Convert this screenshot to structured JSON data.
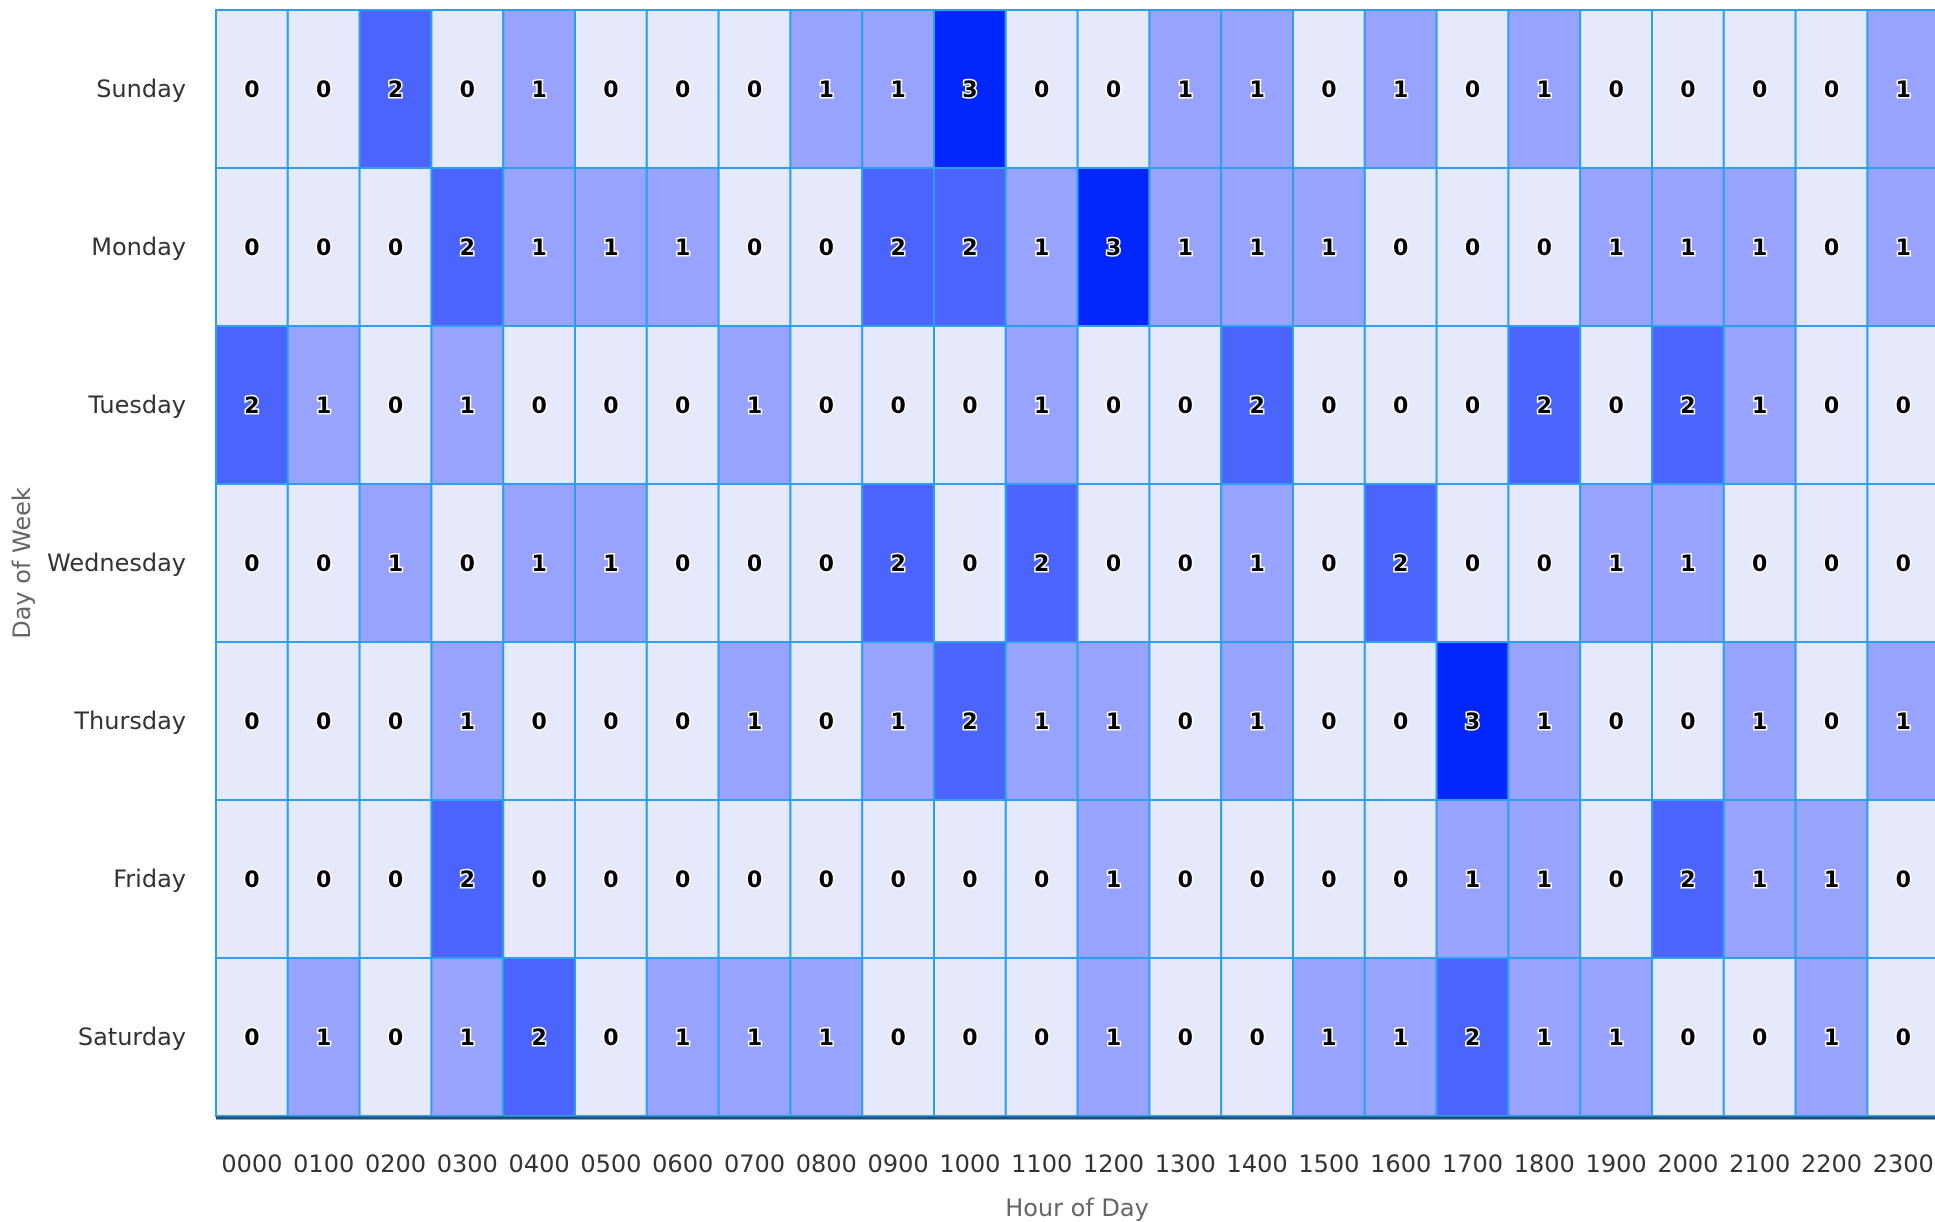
{
  "chart_data": {
    "type": "heatmap",
    "title": "",
    "xlabel": "Hour of Day",
    "ylabel": "Day of Week",
    "x_categories": [
      "0000",
      "0100",
      "0200",
      "0300",
      "0400",
      "0500",
      "0600",
      "0700",
      "0800",
      "0900",
      "1000",
      "1100",
      "1200",
      "1300",
      "1400",
      "1500",
      "1600",
      "1700",
      "1800",
      "1900",
      "2000",
      "2100",
      "2200",
      "2300"
    ],
    "y_categories": [
      "Sunday",
      "Monday",
      "Tuesday",
      "Wednesday",
      "Thursday",
      "Friday",
      "Saturday"
    ],
    "values": [
      [
        0,
        0,
        2,
        0,
        1,
        0,
        0,
        0,
        1,
        1,
        3,
        0,
        0,
        1,
        1,
        0,
        1,
        0,
        1,
        0,
        0,
        0,
        0,
        1
      ],
      [
        0,
        0,
        0,
        2,
        1,
        1,
        1,
        0,
        0,
        2,
        2,
        1,
        3,
        1,
        1,
        1,
        0,
        0,
        0,
        1,
        1,
        1,
        0,
        1
      ],
      [
        2,
        1,
        0,
        1,
        0,
        0,
        0,
        1,
        0,
        0,
        0,
        1,
        0,
        0,
        2,
        0,
        0,
        0,
        2,
        0,
        2,
        1,
        0,
        0
      ],
      [
        0,
        0,
        1,
        0,
        1,
        1,
        0,
        0,
        0,
        2,
        0,
        2,
        0,
        0,
        1,
        0,
        2,
        0,
        0,
        1,
        1,
        0,
        0,
        0
      ],
      [
        0,
        0,
        0,
        1,
        0,
        0,
        0,
        1,
        0,
        1,
        2,
        1,
        1,
        0,
        1,
        0,
        0,
        3,
        1,
        0,
        0,
        1,
        0,
        1
      ],
      [
        0,
        0,
        0,
        2,
        0,
        0,
        0,
        0,
        0,
        0,
        0,
        0,
        1,
        0,
        0,
        0,
        0,
        1,
        1,
        0,
        2,
        1,
        1,
        0
      ],
      [
        0,
        1,
        0,
        1,
        2,
        0,
        1,
        1,
        1,
        0,
        0,
        0,
        1,
        0,
        0,
        1,
        1,
        2,
        1,
        1,
        0,
        0,
        1,
        0
      ]
    ],
    "color_scale": {
      "0": "#e6e8fc",
      "1": "#97a3fc",
      "2": "#4a64fc",
      "3": "#0026fc"
    },
    "cell_border_color": "#2d9ff0",
    "axis_line_color": "#1f4e79",
    "value_range": [
      0,
      3
    ],
    "legend": "none"
  }
}
